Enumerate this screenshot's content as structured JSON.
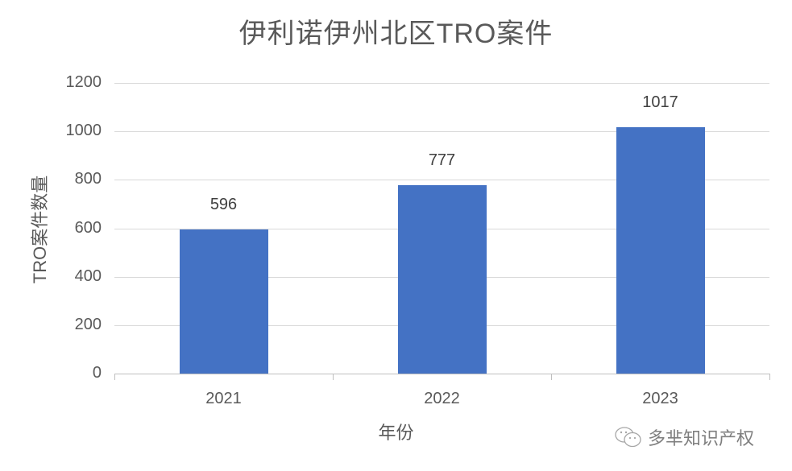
{
  "chart_data": {
    "type": "bar",
    "title": "伊利诺伊州北区TRO案件",
    "categories": [
      "2021",
      "2022",
      "2023"
    ],
    "values": [
      596,
      777,
      1017
    ],
    "series": [
      {
        "name": "TRO案件数量",
        "values": [
          596,
          777,
          1017
        ],
        "color": "#4472c4"
      }
    ],
    "xlabel": "年份",
    "ylabel": "TRO案件数量",
    "ylim": [
      0,
      1200
    ],
    "yticks": [
      "0",
      "200",
      "400",
      "600",
      "800",
      "1000",
      "1200"
    ],
    "data_labels": [
      "596",
      "777",
      "1017"
    ],
    "grid": true,
    "legend": "none"
  },
  "watermark": {
    "icon": "wechat-icon",
    "text": "多芈知识产权"
  },
  "colors": {
    "bar": "#4472c4",
    "text": "#595959",
    "grid": "#d9d9d9"
  }
}
